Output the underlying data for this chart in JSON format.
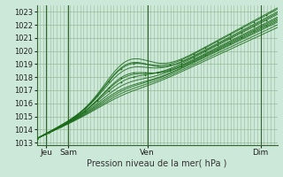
{
  "xlabel": "Pression niveau de la mer( hPa )",
  "ylim": [
    1012.8,
    1023.5
  ],
  "yticks": [
    1013,
    1014,
    1015,
    1016,
    1017,
    1018,
    1019,
    1020,
    1021,
    1022,
    1023
  ],
  "xtick_positions": [
    0.04,
    0.13,
    0.46,
    0.93
  ],
  "xtick_labels": [
    "Jeu",
    "Sam",
    "Ven",
    "Dim"
  ],
  "bg_color": "#cce8d8",
  "line_color": "#1a6b1a",
  "grid_color": "#99bb99",
  "vline_color": "#336633",
  "n_vlines": 72
}
